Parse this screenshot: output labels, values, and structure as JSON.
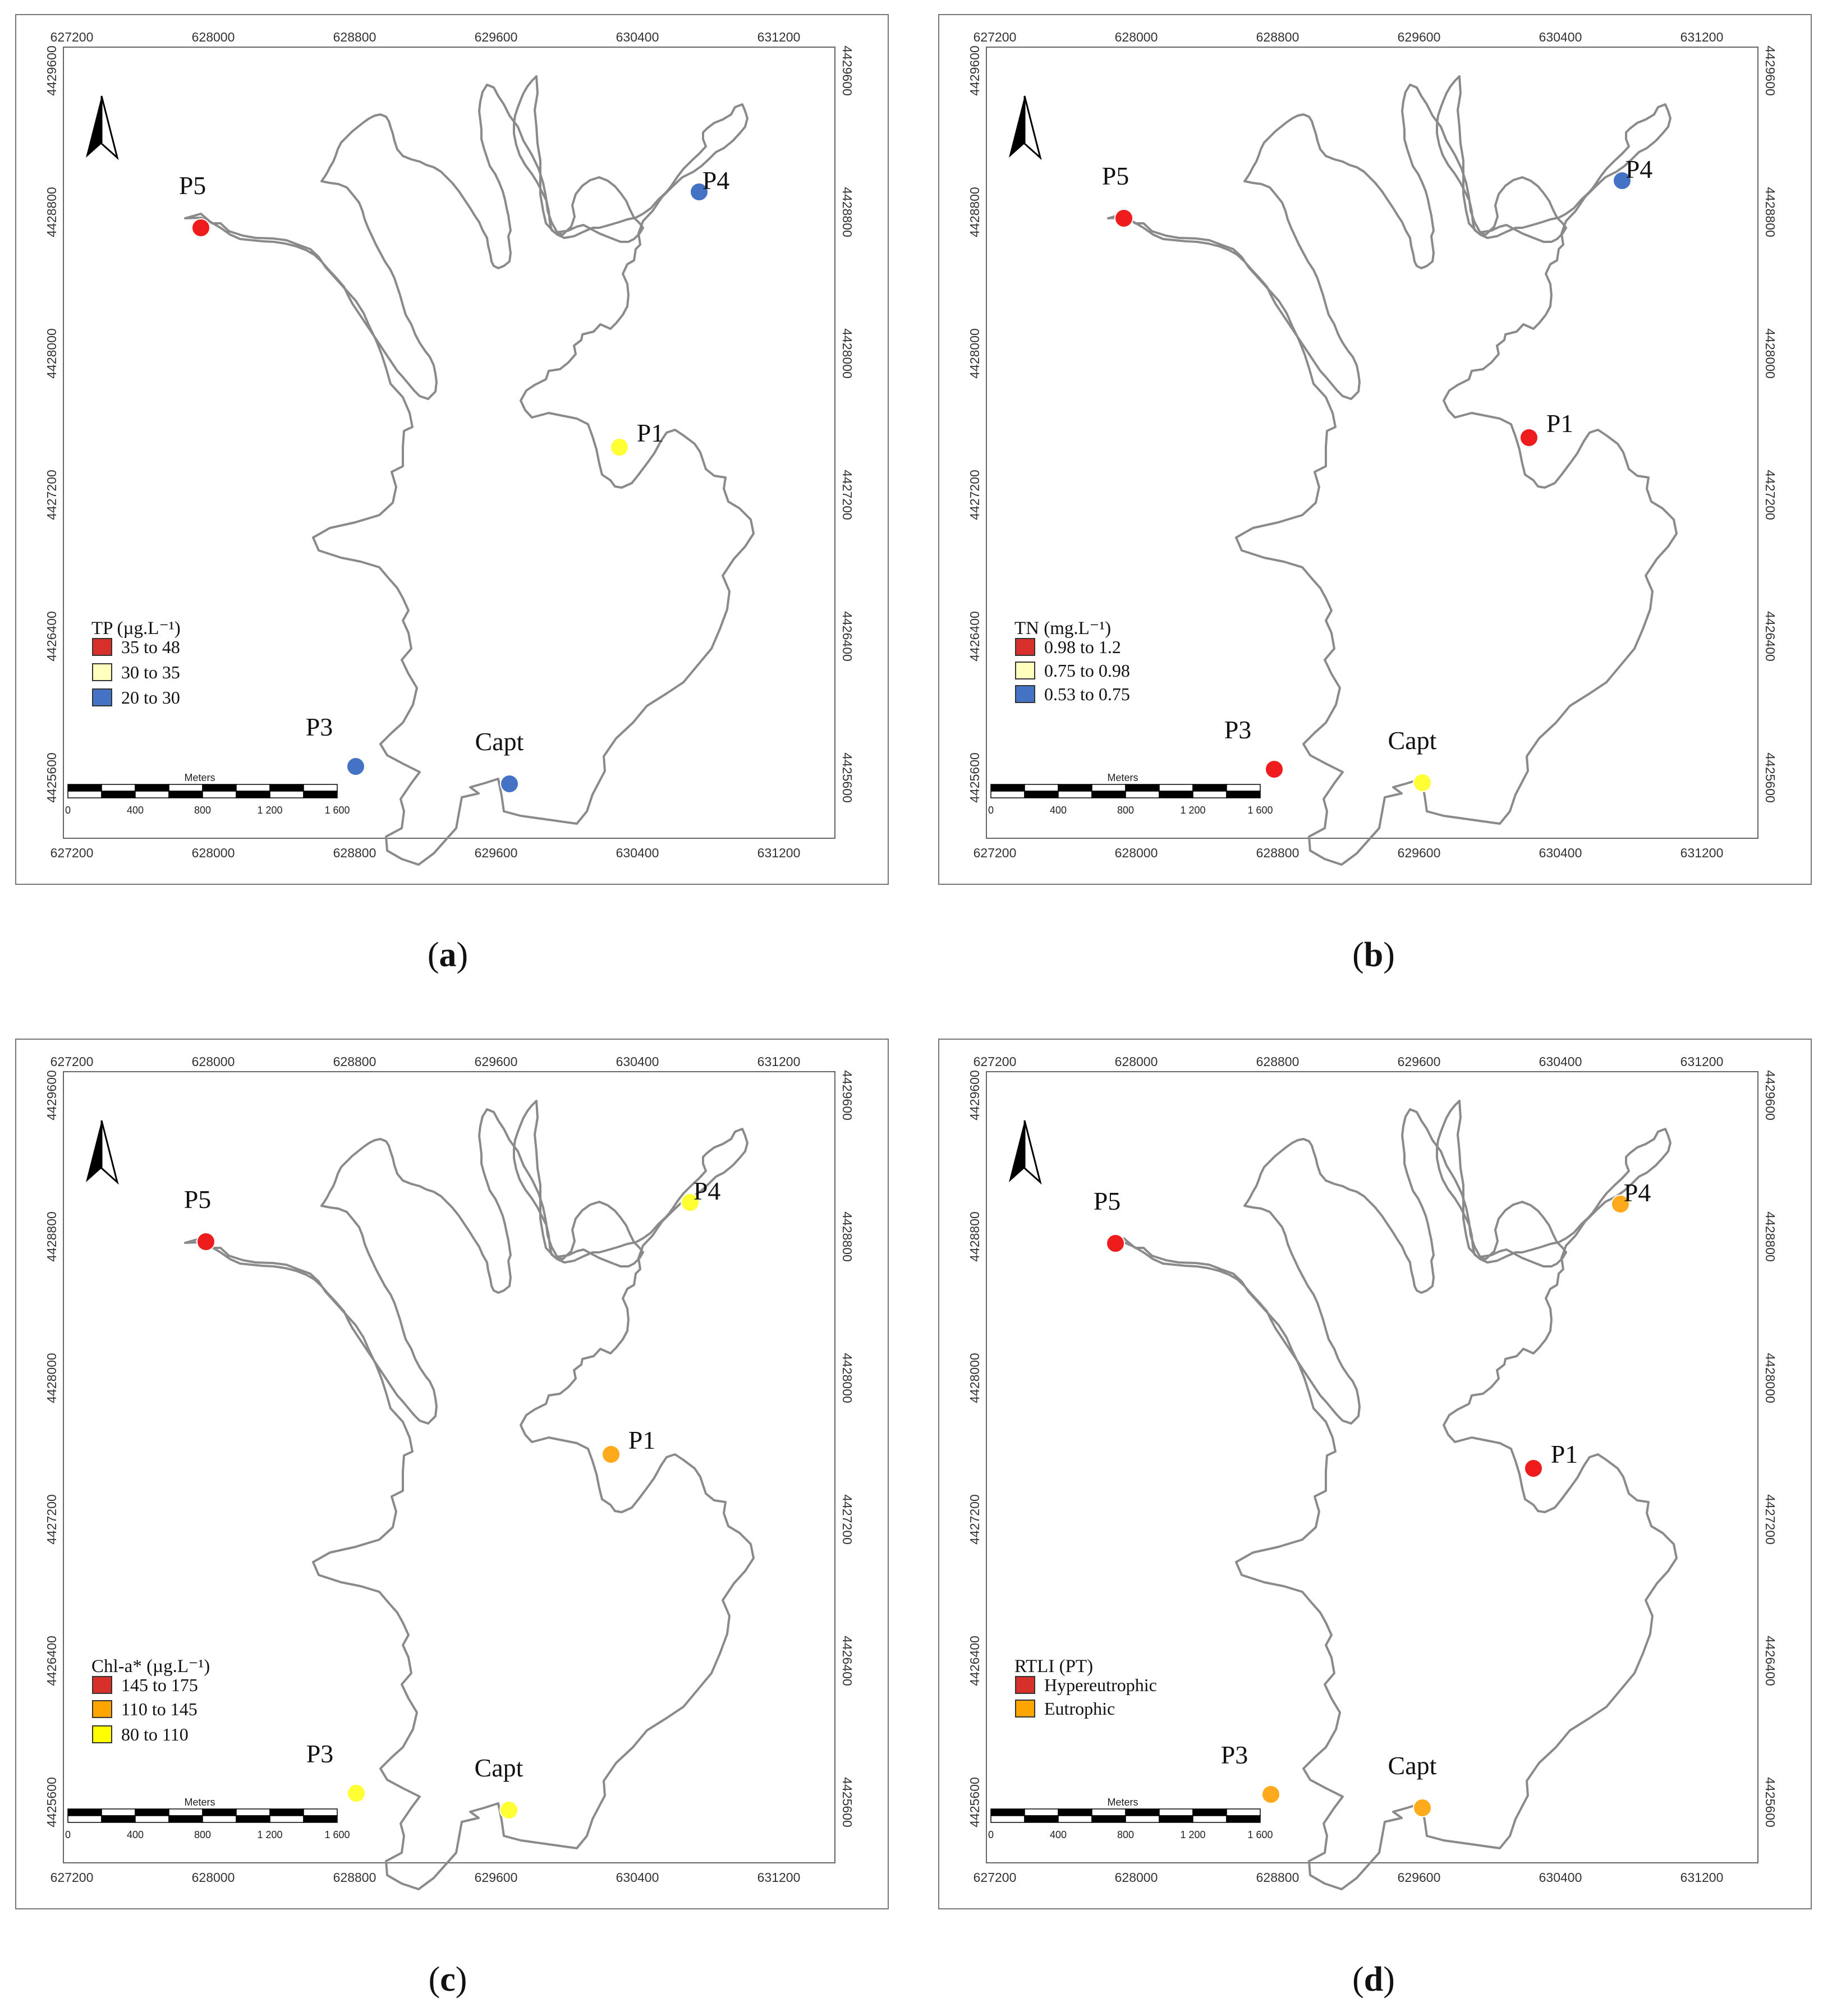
{
  "x_ticks": [
    "627200",
    "628000",
    "628800",
    "629600",
    "630400",
    "631200"
  ],
  "y_ticks": [
    "4429600",
    "4428800",
    "4428000",
    "4427200",
    "4426400",
    "4425600"
  ],
  "scalebar": {
    "title": "Meters",
    "ticks": [
      "0",
      "400",
      "800",
      "1 200",
      "1 600"
    ]
  },
  "station_names": [
    "P1",
    "P3",
    "P4",
    "P5",
    "Capt"
  ],
  "colors": {
    "red": "#ee1c1c",
    "yellow": "#ffff33",
    "blue": "#4472c4",
    "orange": "#ffaa1c",
    "outline": "#8a8a8a"
  },
  "panels": [
    {
      "caption": "a",
      "legend": {
        "title": "TP (µg.L⁻¹)",
        "items": [
          {
            "label": "35 to 48",
            "color": "#d7302b"
          },
          {
            "label": "30 to 35",
            "color": "#ffffbe"
          },
          {
            "label": "20 to 30",
            "color": "#4472c4"
          }
        ]
      },
      "stations": {
        "P1": "#ffff33",
        "P3": "#4472c4",
        "P4": "#4472c4",
        "P5": "#ee1c1c",
        "Capt": "#4472c4"
      }
    },
    {
      "caption": "b",
      "legend": {
        "title": "TN (mg.L⁻¹)",
        "items": [
          {
            "label": "0.98 to 1.2",
            "color": "#d7302b"
          },
          {
            "label": "0.75 to 0.98",
            "color": "#ffffbe"
          },
          {
            "label": "0.53 to 0.75",
            "color": "#4472c4"
          }
        ]
      },
      "stations": {
        "P1": "#ee1c1c",
        "P3": "#ee1c1c",
        "P4": "#4472c4",
        "P5": "#ee1c1c",
        "Capt": "#ffff33"
      }
    },
    {
      "caption": "c",
      "legend": {
        "title": "Chl-a* (µg.L⁻¹)",
        "items": [
          {
            "label": "145 to 175",
            "color": "#d7302b"
          },
          {
            "label": "110 to 145",
            "color": "#ffa500"
          },
          {
            "label": "80 to 110",
            "color": "#ffff00"
          }
        ]
      },
      "stations": {
        "P1": "#ffaa1c",
        "P3": "#ffff33",
        "P4": "#ffff33",
        "P5": "#ee1c1c",
        "Capt": "#ffff33"
      }
    },
    {
      "caption": "d",
      "legend": {
        "title": "RTLI  (PT)",
        "items": [
          {
            "label": "Hypereutrophic",
            "color": "#d7302b"
          },
          {
            "label": "Eutrophic",
            "color": "#ffa500"
          }
        ]
      },
      "stations": {
        "P1": "#ee1c1c",
        "P3": "#ffaa1c",
        "P4": "#ffaa1c",
        "P5": "#ee1c1c",
        "Capt": "#ffaa1c"
      }
    }
  ]
}
